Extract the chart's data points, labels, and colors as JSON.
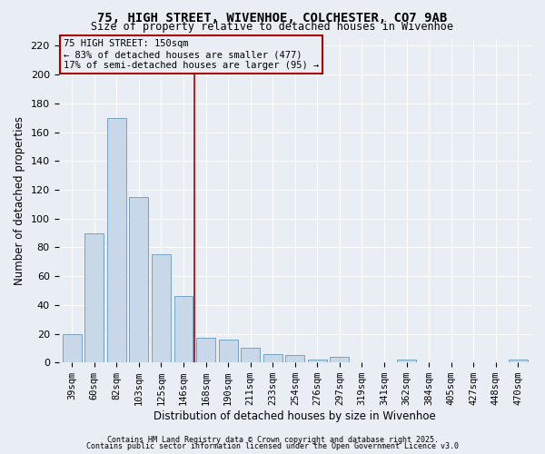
{
  "title1": "75, HIGH STREET, WIVENHOE, COLCHESTER, CO7 9AB",
  "title2": "Size of property relative to detached houses in Wivenhoe",
  "xlabel": "Distribution of detached houses by size in Wivenhoe",
  "ylabel": "Number of detached properties",
  "categories": [
    "39sqm",
    "60sqm",
    "82sqm",
    "103sqm",
    "125sqm",
    "146sqm",
    "168sqm",
    "190sqm",
    "211sqm",
    "233sqm",
    "254sqm",
    "276sqm",
    "297sqm",
    "319sqm",
    "341sqm",
    "362sqm",
    "384sqm",
    "405sqm",
    "427sqm",
    "448sqm",
    "470sqm"
  ],
  "values": [
    20,
    90,
    170,
    115,
    75,
    46,
    17,
    16,
    10,
    6,
    5,
    2,
    4,
    0,
    0,
    2,
    0,
    0,
    0,
    0,
    2
  ],
  "bar_color": "#c8d8e8",
  "bar_edge_color": "#6699bb",
  "background_color": "#e8eef4",
  "grid_color": "#ffffff",
  "vline_x": 5.5,
  "vline_color": "#aa0000",
  "annotation_text": "75 HIGH STREET: 150sqm\n← 83% of detached houses are smaller (477)\n17% of semi-detached houses are larger (95) →",
  "annotation_box_color": "#aa0000",
  "ylim": [
    0,
    225
  ],
  "yticks": [
    0,
    20,
    40,
    60,
    80,
    100,
    120,
    140,
    160,
    180,
    200,
    220
  ],
  "footnote1": "Contains HM Land Registry data © Crown copyright and database right 2025.",
  "footnote2": "Contains public sector information licensed under the Open Government Licence v3.0"
}
